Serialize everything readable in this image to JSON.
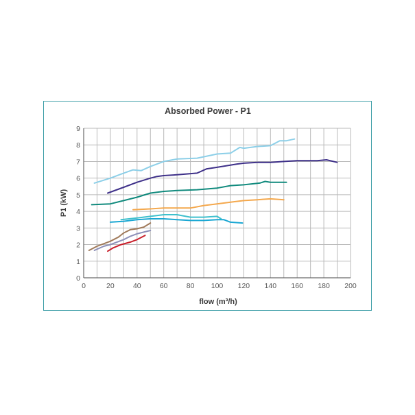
{
  "chart_data": {
    "type": "line",
    "title": "Absorbed Power - P1",
    "xlabel": "flow (m³/h)",
    "ylabel": "P1 (kW)",
    "xlim": [
      0,
      200
    ],
    "ylim": [
      0,
      9
    ],
    "xticks": [
      "0",
      "20",
      "40",
      "60",
      "80",
      "100",
      "120",
      "140",
      "160",
      "180",
      "200"
    ],
    "yticks": [
      "0",
      "1",
      "2",
      "3",
      "4",
      "5",
      "6",
      "7",
      "8",
      "9"
    ],
    "grid": true,
    "legend": "none",
    "series": [
      {
        "color": "#8ccfe8",
        "x": [
          8,
          20,
          30,
          37,
          43,
          50,
          60,
          70,
          85,
          100,
          110,
          117,
          120,
          130,
          140,
          147,
          152,
          158
        ],
        "y": [
          5.7,
          6.0,
          6.3,
          6.5,
          6.45,
          6.7,
          7.0,
          7.15,
          7.2,
          7.45,
          7.5,
          7.85,
          7.8,
          7.9,
          7.95,
          8.25,
          8.25,
          8.35
        ]
      },
      {
        "color": "#3e3089",
        "x": [
          18,
          30,
          40,
          50,
          55,
          60,
          70,
          85,
          92,
          100,
          115,
          120,
          130,
          140,
          150,
          160,
          168,
          175,
          182,
          190
        ],
        "y": [
          5.1,
          5.45,
          5.75,
          6.0,
          6.1,
          6.15,
          6.2,
          6.3,
          6.55,
          6.65,
          6.85,
          6.9,
          6.95,
          6.95,
          7.0,
          7.05,
          7.05,
          7.05,
          7.1,
          6.95
        ]
      },
      {
        "color": "#108a7d",
        "x": [
          6,
          20,
          30,
          40,
          50,
          60,
          70,
          85,
          100,
          110,
          120,
          132,
          136,
          140,
          152
        ],
        "y": [
          4.4,
          4.45,
          4.65,
          4.85,
          5.1,
          5.2,
          5.25,
          5.3,
          5.4,
          5.55,
          5.6,
          5.7,
          5.8,
          5.75,
          5.75
        ]
      },
      {
        "color": "#f4a84d",
        "x": [
          37,
          50,
          60,
          70,
          80,
          90,
          100,
          110,
          120,
          130,
          140,
          150
        ],
        "y": [
          4.1,
          4.15,
          4.2,
          4.2,
          4.2,
          4.35,
          4.45,
          4.55,
          4.65,
          4.7,
          4.75,
          4.7
        ]
      },
      {
        "color": "#1aa7d3",
        "x": [
          20,
          30,
          40,
          50,
          60,
          70,
          80,
          90,
          100,
          105,
          110,
          119
        ],
        "y": [
          3.35,
          3.4,
          3.5,
          3.55,
          3.55,
          3.5,
          3.45,
          3.45,
          3.5,
          3.5,
          3.35,
          3.3
        ]
      },
      {
        "color": "#3fc0cd",
        "x": [
          28,
          40,
          50,
          60,
          70,
          80,
          90,
          100,
          103
        ],
        "y": [
          3.5,
          3.6,
          3.7,
          3.8,
          3.8,
          3.65,
          3.65,
          3.7,
          3.55
        ]
      },
      {
        "color": "#a07a5a",
        "x": [
          4,
          10,
          20,
          26,
          30,
          35,
          40,
          45,
          50
        ],
        "y": [
          1.65,
          1.9,
          2.2,
          2.45,
          2.7,
          2.9,
          2.95,
          3.05,
          3.3
        ]
      },
      {
        "color": "#8c8fb8",
        "x": [
          8,
          15,
          20,
          30,
          35,
          40,
          45,
          50
        ],
        "y": [
          1.65,
          1.9,
          2.0,
          2.3,
          2.5,
          2.65,
          2.75,
          2.85
        ]
      },
      {
        "color": "#c81e2a",
        "x": [
          18,
          22,
          28,
          35,
          40,
          46
        ],
        "y": [
          1.6,
          1.8,
          2.0,
          2.15,
          2.3,
          2.55
        ]
      }
    ]
  }
}
